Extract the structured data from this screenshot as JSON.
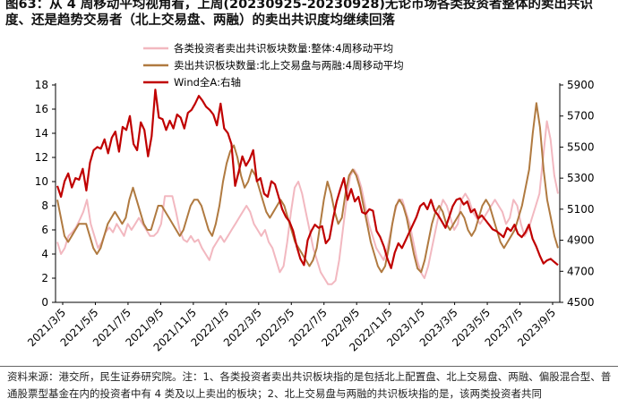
{
  "title": "图63：从 4 周移动平均视角看，上周(20230925-20230928)无论市场各类投资者整体的卖出共识度、还是趋势交易者（北上交易盘、两融）的卖出共识度均继续回落",
  "footer": "资料来源：港交所，民生证券研究院。注：1、各类投资者卖出共识板块指的是包括北上配置盘、北上交易盘、两融、偏股混合型、普通股票型基金在内的投资者中有 4 类及以上卖出的板块；2、北上交易盘与两融的共识板块指的是，该两类投资者共同",
  "chart_data": {
    "type": "line",
    "x_start": "2021-03-05",
    "x_ticks": [
      "2021/3/5",
      "2021/5/5",
      "2021/7/5",
      "2021/9/5",
      "2021/11/5",
      "2022/1/5",
      "2022/3/5",
      "2022/5/5",
      "2022/7/5",
      "2022/9/5",
      "2022/11/5",
      "2023/1/5",
      "2023/3/5",
      "2023/5/5",
      "2023/7/5",
      "2023/9/5"
    ],
    "y_left": {
      "min": 0,
      "max": 18,
      "ticks": [
        0,
        2,
        4,
        6,
        8,
        10,
        12,
        14,
        16,
        18
      ]
    },
    "y_right": {
      "min": 4500,
      "max": 5900,
      "ticks": [
        4500,
        4700,
        4900,
        5100,
        5300,
        5500,
        5700,
        5900
      ]
    },
    "legend_position": "top-center",
    "series": [
      {
        "name": "各类投资者卖出共识板块数量:整体:4周移动平均",
        "axis": "left",
        "color": "#f2b8c0",
        "values": [
          5.0,
          4.0,
          4.5,
          5.5,
          5.8,
          6.2,
          6.8,
          7.5,
          8.5,
          6.5,
          5.5,
          4.5,
          5.0,
          5.8,
          6.2,
          5.8,
          6.5,
          6.0,
          5.5,
          6.5,
          6.0,
          6.5,
          7.0,
          6.5,
          6.0,
          5.5,
          5.5,
          5.8,
          6.5,
          8.8,
          8.8,
          8.8,
          7.5,
          6.0,
          5.2,
          5.0,
          5.5,
          5.0,
          5.2,
          4.5,
          4.0,
          3.5,
          4.5,
          5.0,
          5.5,
          5.0,
          5.5,
          6.0,
          6.5,
          7.0,
          7.5,
          8.0,
          7.5,
          6.5,
          6.0,
          5.5,
          6.0,
          5.0,
          4.5,
          3.5,
          2.5,
          3.0,
          5.0,
          7.5,
          9.5,
          10.0,
          9.0,
          7.5,
          6.0,
          4.5,
          3.5,
          2.5,
          2.0,
          1.5,
          1.5,
          1.8,
          3.5,
          6.0,
          8.5,
          10.5,
          11.0,
          10.5,
          9.5,
          8.0,
          6.5,
          5.5,
          4.5,
          4.0,
          3.5,
          4.5,
          6.0,
          7.5,
          8.5,
          8.5,
          7.5,
          6.5,
          5.0,
          3.5,
          2.5,
          2.0,
          3.0,
          4.5,
          6.0,
          7.5,
          8.5,
          8.0,
          7.0,
          6.0,
          6.5,
          8.5,
          9.0,
          8.5,
          7.5,
          7.0,
          6.5,
          7.0,
          7.5,
          8.0,
          8.5,
          8.0,
          7.5,
          6.5,
          7.0,
          8.5,
          8.0,
          6.5,
          5.5,
          6.0,
          7.0,
          8.0,
          9.0,
          12.0,
          15.0,
          13.5,
          10.5,
          9.0
        ]
      },
      {
        "name": "卖出共识板块数量:北上交易盘与两融:4周移动平均",
        "axis": "left",
        "color": "#b07a40",
        "values": [
          8.5,
          7.0,
          5.5,
          5.0,
          5.5,
          6.0,
          6.5,
          6.5,
          6.5,
          5.5,
          4.5,
          4.0,
          4.5,
          5.5,
          6.5,
          7.0,
          7.5,
          7.0,
          6.5,
          7.0,
          8.5,
          9.5,
          8.5,
          7.5,
          6.5,
          6.0,
          6.0,
          7.0,
          8.0,
          8.0,
          7.5,
          7.0,
          6.5,
          6.0,
          5.5,
          6.0,
          7.0,
          8.0,
          8.5,
          8.5,
          8.0,
          7.0,
          6.0,
          5.5,
          6.5,
          8.0,
          10.0,
          11.5,
          12.5,
          13.0,
          12.0,
          10.5,
          9.5,
          10.0,
          11.0,
          10.5,
          9.5,
          8.5,
          7.5,
          7.0,
          7.5,
          8.0,
          8.5,
          8.0,
          7.0,
          6.0,
          5.0,
          4.5,
          4.0,
          3.5,
          3.0,
          3.5,
          4.5,
          6.5,
          8.5,
          10.0,
          9.0,
          7.5,
          6.5,
          7.0,
          9.0,
          10.5,
          11.0,
          10.5,
          9.5,
          8.0,
          6.5,
          5.0,
          4.0,
          3.0,
          2.5,
          3.0,
          4.5,
          6.5,
          8.0,
          8.5,
          8.0,
          7.0,
          5.5,
          4.0,
          2.8,
          2.5,
          3.5,
          5.0,
          6.5,
          7.5,
          8.0,
          7.5,
          6.5,
          6.0,
          6.5,
          7.0,
          7.5,
          7.0,
          6.0,
          5.5,
          6.0,
          7.0,
          8.0,
          8.5,
          8.0,
          7.0,
          6.0,
          5.0,
          4.5,
          5.0,
          5.5,
          6.0,
          7.0,
          8.0,
          9.5,
          11.0,
          14.0,
          16.5,
          14.5,
          11.0,
          8.5,
          7.0,
          5.5,
          4.5
        ]
      },
      {
        "name": "Wind全A:右轴",
        "axis": "right",
        "color": "#c00000",
        "values": [
          5250,
          5180,
          5280,
          5330,
          5240,
          5300,
          5290,
          5360,
          5220,
          5400,
          5480,
          5500,
          5490,
          5550,
          5460,
          5560,
          5600,
          5470,
          5630,
          5610,
          5700,
          5520,
          5480,
          5660,
          5610,
          5440,
          5570,
          5870,
          5690,
          5680,
          5610,
          5670,
          5620,
          5710,
          5690,
          5620,
          5720,
          5740,
          5780,
          5830,
          5800,
          5760,
          5740,
          5710,
          5640,
          5780,
          5620,
          5590,
          5520,
          5250,
          5340,
          5440,
          5380,
          5420,
          5480,
          5280,
          5300,
          5200,
          5180,
          5280,
          5260,
          5180,
          5100,
          5050,
          5020,
          4960,
          4860,
          4780,
          4740,
          4900,
          4960,
          5000,
          4980,
          4990,
          4880,
          4910,
          5040,
          5150,
          5230,
          5300,
          5160,
          5230,
          5150,
          5180,
          5080,
          5070,
          5100,
          5090,
          4960,
          4920,
          4860,
          4780,
          4720,
          4820,
          4880,
          4850,
          4900,
          4950,
          5000,
          5050,
          5120,
          5140,
          5100,
          5160,
          5090,
          5060,
          5020,
          4980,
          5050,
          5120,
          5160,
          5170,
          5130,
          5150,
          5080,
          5100,
          5040,
          5060,
          5030,
          5000,
          4970,
          4960,
          4940,
          4920,
          4980,
          4960,
          5000,
          4940,
          4920,
          4950,
          5000,
          4910,
          4860,
          4800,
          4750,
          4770,
          4780,
          4760,
          4740
        ]
      }
    ]
  }
}
